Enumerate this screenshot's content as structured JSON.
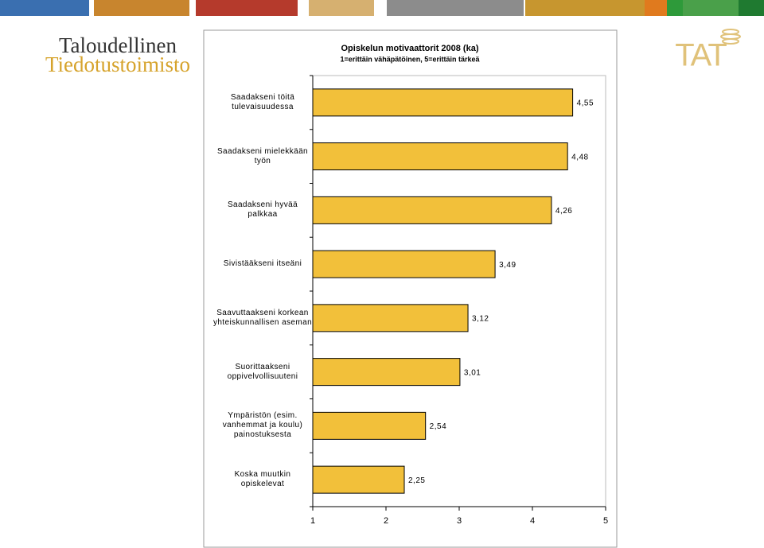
{
  "logo": {
    "line1": "Taloudellinen",
    "line2": "Tiedotustoimisto"
  },
  "tat_logo": "TAT",
  "chart_data": {
    "type": "bar",
    "orientation": "horizontal",
    "title": "Opiskelun motivaattorit 2008 (ka)",
    "subtitle": "1=erittäin vähäpätöinen, 5=erittäin tärkeä",
    "categories": [
      "Saadakseni töitä\ntulevaisuudessa",
      "Saadakseni mielekkään\ntyön",
      "Saadakseni hyvää\npalkkaa",
      "Sivistääkseni itseäni",
      "Saavuttaakseni korkean\nyhteiskunnallisen aseman",
      "Suorittaakseni\noppivelvollisuuteni",
      "Ympäristön (esim.\nvanhemmat ja koulu)\npainostuksesta",
      "Koska muutkin\nopiskelevat"
    ],
    "values": [
      4.55,
      4.48,
      4.26,
      3.49,
      3.12,
      3.01,
      2.54,
      2.25
    ],
    "value_labels": [
      "4,55",
      "4,48",
      "4,26",
      "3,49",
      "3,12",
      "3,01",
      "2,54",
      "2,25"
    ],
    "color": "#f2c03a",
    "xlim": [
      1,
      5
    ],
    "xticks": [
      1,
      2,
      3,
      4,
      5
    ]
  }
}
